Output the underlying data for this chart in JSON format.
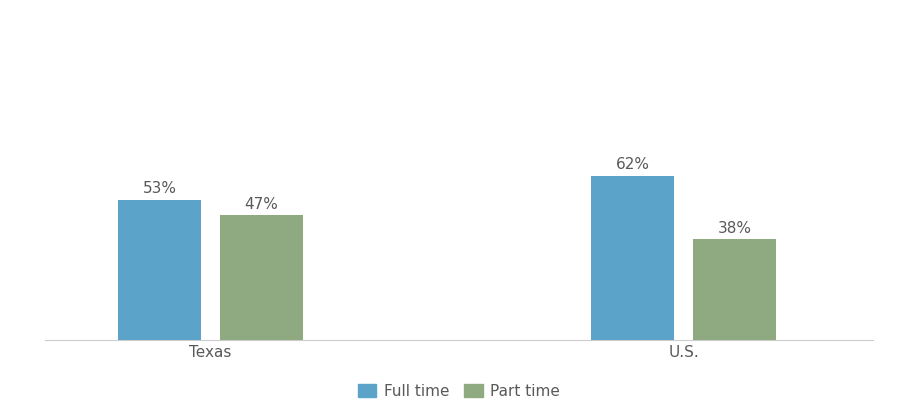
{
  "groups": [
    "Texas",
    "U.S."
  ],
  "full_time": [
    53,
    62
  ],
  "part_time": [
    47,
    38
  ],
  "full_time_color": "#5ba3c9",
  "part_time_color": "#8faa80",
  "label_color": "#595959",
  "background_color": "#ffffff",
  "bar_width": 0.35,
  "group_centers": [
    1.0,
    3.0
  ],
  "bar_gap": 0.08,
  "ylim": [
    0,
    100
  ],
  "legend_labels": [
    "Full time",
    "Part time"
  ],
  "label_fontsize": 11,
  "tick_fontsize": 11,
  "xlim": [
    0.3,
    3.8
  ]
}
